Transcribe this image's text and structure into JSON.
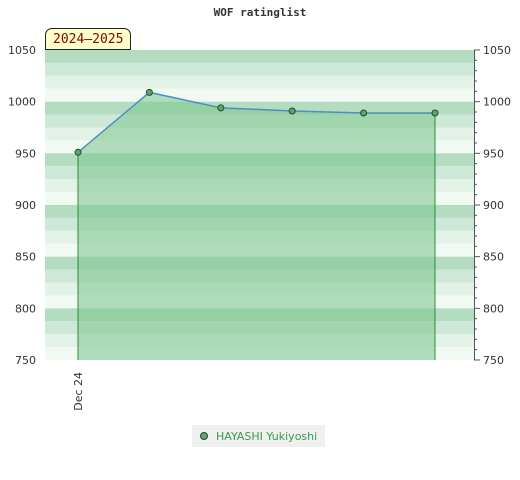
{
  "chart_data": {
    "type": "area",
    "title": "WOF ratinglist",
    "season": "2024–2025",
    "x_tick_labels": [
      "Dec 24"
    ],
    "y_ticks": [
      750,
      800,
      850,
      900,
      950,
      1000,
      1050
    ],
    "ylim": [
      750,
      1050
    ],
    "points": [
      951,
      1009,
      994,
      991,
      989,
      989
    ],
    "series": [
      {
        "name": "HAYASHI Yukiyoshi",
        "values": [
          951,
          1009,
          994,
          991,
          989,
          989
        ]
      }
    ],
    "grid": true,
    "legend_position": "bottom",
    "colors": {
      "fill": "#7cc48c",
      "line": "#4f8fc0",
      "marker": "#5fa46f",
      "marker_stroke": "#1f4d28",
      "edge": "#2e8b40",
      "band_dark": "#b3dcc0",
      "band_mid": "#cde8d6",
      "band_light": "#e2f2e7",
      "band_lightest": "#f1f9f3"
    }
  }
}
